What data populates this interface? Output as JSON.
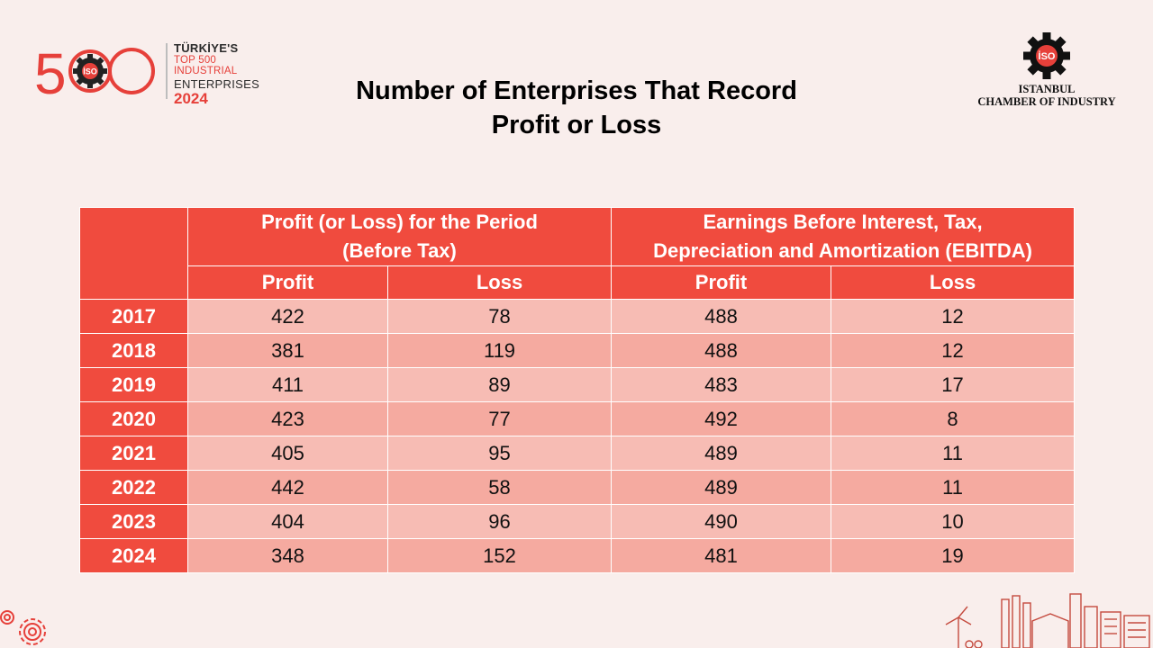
{
  "brand_logo": {
    "number": "500",
    "badge": "İSO",
    "line1": "TÜRKİYE'S",
    "line2": "TOP 500 INDUSTRIAL",
    "line3": "ENTERPRISES",
    "year": "2024"
  },
  "title": {
    "line1": "Number of Enterprises That Record",
    "line2": "Profit or Loss"
  },
  "org_logo": {
    "badge": "İSO",
    "line1": "ISTANBUL",
    "line2": "CHAMBER OF INDUSTRY"
  },
  "table": {
    "group_headers": [
      "Profit (or Loss) for the Period (Before Tax)",
      "Earnings Before Interest, Tax, Depreciation and Amortization (EBITDA)"
    ],
    "group_header_lines": [
      [
        "Profit (or Loss) for the Period",
        "(Before Tax)"
      ],
      [
        "Earnings Before Interest, Tax,",
        "Depreciation and Amortization (EBITDA)"
      ]
    ],
    "sub_headers": [
      "Profit",
      "Loss",
      "Profit",
      "Loss"
    ],
    "rows": [
      {
        "year": "2017",
        "values": [
          "422",
          "78",
          "488",
          "12"
        ]
      },
      {
        "year": "2018",
        "values": [
          "381",
          "119",
          "488",
          "12"
        ]
      },
      {
        "year": "2019",
        "values": [
          "411",
          "89",
          "483",
          "17"
        ]
      },
      {
        "year": "2020",
        "values": [
          "423",
          "77",
          "492",
          "8"
        ]
      },
      {
        "year": "2021",
        "values": [
          "405",
          "95",
          "489",
          "11"
        ]
      },
      {
        "year": "2022",
        "values": [
          "442",
          "58",
          "489",
          "11"
        ]
      },
      {
        "year": "2023",
        "values": [
          "404",
          "96",
          "490",
          "10"
        ]
      },
      {
        "year": "2024",
        "values": [
          "348",
          "152",
          "481",
          "19"
        ]
      }
    ]
  },
  "colors": {
    "header_red": "#f04b3e",
    "row_light": "#f7bcb4",
    "row_dark": "#f5aaa0",
    "background": "#f9eeec"
  }
}
